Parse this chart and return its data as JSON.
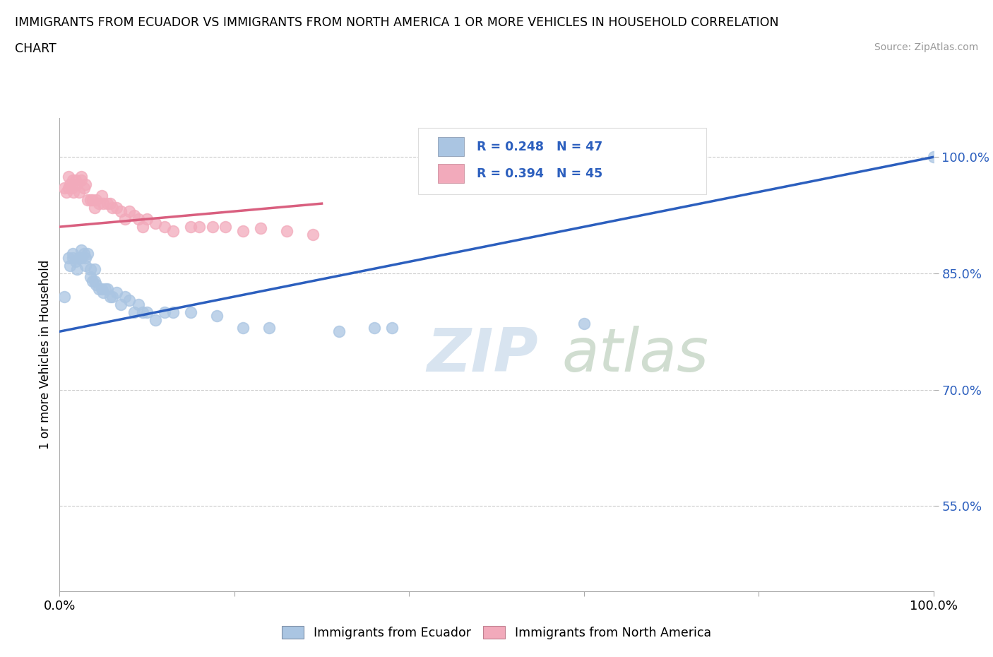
{
  "title_line1": "IMMIGRANTS FROM ECUADOR VS IMMIGRANTS FROM NORTH AMERICA 1 OR MORE VEHICLES IN HOUSEHOLD CORRELATION",
  "title_line2": "CHART",
  "source_text": "Source: ZipAtlas.com",
  "ylabel": "1 or more Vehicles in Household",
  "xlim": [
    0.0,
    1.0
  ],
  "ylim": [
    0.44,
    1.05
  ],
  "xticks": [
    0.0,
    0.2,
    0.4,
    0.6,
    0.8,
    1.0
  ],
  "xticklabels": [
    "0.0%",
    "",
    "",
    "",
    "",
    "100.0%"
  ],
  "ytick_positions": [
    0.55,
    0.7,
    0.85,
    1.0
  ],
  "yticklabels": [
    "55.0%",
    "70.0%",
    "85.0%",
    "100.0%"
  ],
  "legend_label1": "Immigrants from Ecuador",
  "legend_label2": "Immigrants from North America",
  "r1": 0.248,
  "n1": 47,
  "r2": 0.394,
  "n2": 45,
  "color_ecuador": "#aac5e2",
  "color_northamerica": "#f2aabb",
  "color_line_ecuador": "#2c5fbe",
  "color_line_northamerica": "#d95f7f",
  "watermark_zip": "ZIP",
  "watermark_atlas": "atlas",
  "background_color": "#ffffff",
  "ecuador_x": [
    0.005,
    0.01,
    0.012,
    0.015,
    0.015,
    0.018,
    0.02,
    0.022,
    0.025,
    0.025,
    0.028,
    0.03,
    0.03,
    0.032,
    0.035,
    0.035,
    0.038,
    0.04,
    0.04,
    0.042,
    0.045,
    0.048,
    0.05,
    0.052,
    0.055,
    0.058,
    0.06,
    0.065,
    0.07,
    0.075,
    0.08,
    0.085,
    0.09,
    0.095,
    0.1,
    0.11,
    0.12,
    0.13,
    0.15,
    0.18,
    0.21,
    0.24,
    0.32,
    0.36,
    0.38,
    0.6,
    1.0
  ],
  "ecuador_y": [
    0.82,
    0.87,
    0.86,
    0.87,
    0.875,
    0.865,
    0.855,
    0.87,
    0.87,
    0.88,
    0.875,
    0.86,
    0.87,
    0.875,
    0.845,
    0.855,
    0.84,
    0.84,
    0.855,
    0.835,
    0.83,
    0.83,
    0.825,
    0.83,
    0.83,
    0.82,
    0.82,
    0.825,
    0.81,
    0.82,
    0.815,
    0.8,
    0.81,
    0.8,
    0.8,
    0.79,
    0.8,
    0.8,
    0.8,
    0.795,
    0.78,
    0.78,
    0.775,
    0.78,
    0.78,
    0.785,
    1.0
  ],
  "northamerica_x": [
    0.005,
    0.008,
    0.01,
    0.01,
    0.012,
    0.014,
    0.015,
    0.016,
    0.018,
    0.02,
    0.022,
    0.025,
    0.025,
    0.028,
    0.03,
    0.032,
    0.035,
    0.038,
    0.04,
    0.042,
    0.045,
    0.048,
    0.05,
    0.055,
    0.058,
    0.06,
    0.065,
    0.07,
    0.075,
    0.08,
    0.085,
    0.09,
    0.095,
    0.1,
    0.11,
    0.12,
    0.13,
    0.15,
    0.16,
    0.175,
    0.19,
    0.21,
    0.23,
    0.26,
    0.29
  ],
  "northamerica_y": [
    0.96,
    0.955,
    0.96,
    0.975,
    0.965,
    0.96,
    0.97,
    0.955,
    0.97,
    0.965,
    0.955,
    0.97,
    0.975,
    0.96,
    0.965,
    0.945,
    0.945,
    0.945,
    0.935,
    0.945,
    0.94,
    0.95,
    0.94,
    0.94,
    0.94,
    0.935,
    0.935,
    0.93,
    0.92,
    0.93,
    0.925,
    0.92,
    0.91,
    0.92,
    0.915,
    0.91,
    0.905,
    0.91,
    0.91,
    0.91,
    0.91,
    0.905,
    0.908,
    0.905,
    0.9
  ],
  "ec_line_x0": 0.0,
  "ec_line_y0": 0.775,
  "ec_line_x1": 1.0,
  "ec_line_y1": 1.0,
  "na_line_x0": 0.0,
  "na_line_y0": 0.91,
  "na_line_x1": 0.3,
  "na_line_y1": 0.94
}
